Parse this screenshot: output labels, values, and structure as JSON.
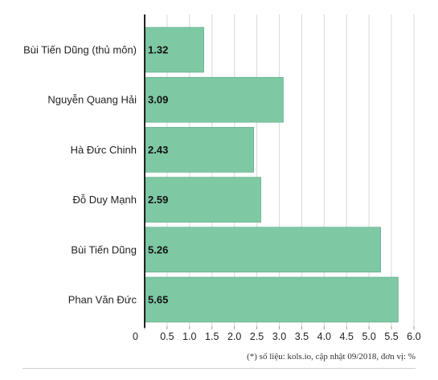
{
  "chart_data": {
    "type": "bar",
    "orientation": "horizontal",
    "categories": [
      "Bùi Tiến Dũng (thủ môn)",
      "Nguyễn Quang Hải",
      "Hà Đức Chinh",
      "Đỗ Duy Mạnh",
      "Bùi Tiến Dũng",
      "Phan Văn Đức"
    ],
    "values": [
      1.32,
      3.09,
      2.43,
      2.59,
      5.26,
      5.65
    ],
    "value_labels": [
      "1.32",
      "3.09",
      "2.43",
      "2.59",
      "5.26",
      "5.65"
    ],
    "xlim": [
      0,
      6.0
    ],
    "xticks": [
      0,
      0.5,
      1.0,
      1.5,
      2.0,
      2.5,
      3.0,
      3.5,
      4.0,
      4.5,
      5.0,
      5.5,
      6.0
    ],
    "xtick_labels": [
      "0",
      "0.5",
      "1.0",
      "1.5",
      "2.0",
      "2.5",
      "3.0",
      "3.5",
      "4.0",
      "4.5",
      "5.0",
      "5.5",
      "6.0"
    ],
    "grid": true,
    "bar_color": "#7ec8a4",
    "bar_stroke": "#5aa886",
    "title": "",
    "xlabel": "",
    "ylabel": ""
  },
  "footnote": "(*) số liệu: kols.io, cập nhật 09/2018, đơn vị: %"
}
